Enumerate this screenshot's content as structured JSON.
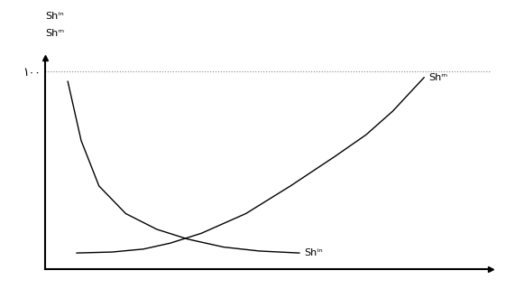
{
  "chart_data": {
    "type": "line",
    "y_labels": [
      "Shⁱⁿ",
      "Shᵐ"
    ],
    "series": [
      {
        "name": "Shᵐ",
        "color": "#000000",
        "x": [
          7,
          15,
          22,
          28,
          35,
          45,
          55,
          65,
          72,
          78,
          85
        ],
        "values": [
          8,
          8.5,
          10,
          13,
          18,
          28,
          42,
          57,
          68,
          80,
          97
        ]
      },
      {
        "name": "Shⁱⁿ",
        "color": "#000000",
        "x": [
          5,
          8,
          12,
          18,
          25,
          32,
          40,
          48,
          57
        ],
        "values": [
          95,
          65,
          42,
          28,
          20,
          15,
          11,
          9,
          8
        ]
      }
    ],
    "xlim": [
      0,
      100
    ],
    "xticks": [],
    "ylim": [
      0,
      107
    ],
    "yticks": [
      {
        "value": 100,
        "label": "۱۰۰"
      }
    ],
    "grid": true,
    "tick_labels": "y"
  }
}
